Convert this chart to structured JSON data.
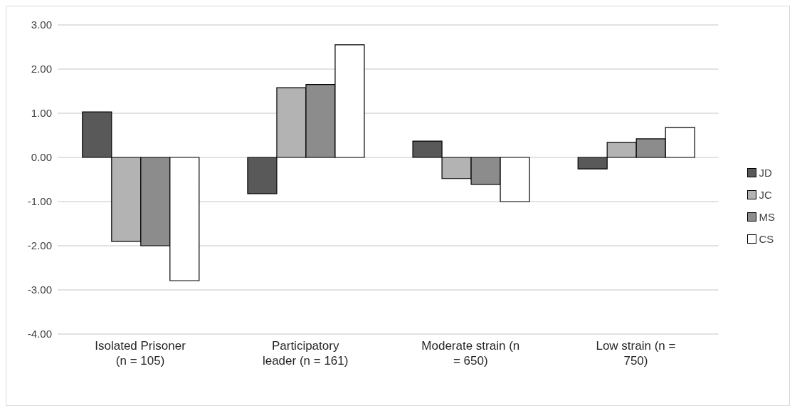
{
  "chart_data": {
    "type": "bar",
    "categories": [
      "Isolated Prisoner (n = 105)",
      "Participatory leader (n = 161)",
      "Moderate strain (n = 650)",
      "Low strain (n = 750)"
    ],
    "series": [
      {
        "name": "JD",
        "color": "#595959",
        "values": [
          1.03,
          -0.82,
          0.37,
          -0.26
        ]
      },
      {
        "name": "JC",
        "color": "#b3b3b3",
        "values": [
          -1.9,
          1.58,
          -0.48,
          0.34
        ]
      },
      {
        "name": "MS",
        "color": "#8c8c8c",
        "values": [
          -2.0,
          1.65,
          -0.61,
          0.42
        ]
      },
      {
        "name": "CS",
        "color": "#ffffff",
        "values": [
          -2.79,
          2.55,
          -1.0,
          0.68
        ]
      }
    ],
    "ylim": [
      -4,
      3
    ],
    "yticks": [
      {
        "value": -4,
        "label": "-4.00"
      },
      {
        "value": -3,
        "label": "-3.00"
      },
      {
        "value": -2,
        "label": "-2.00"
      },
      {
        "value": -1,
        "label": "-1.00"
      },
      {
        "value": 0,
        "label": "0.00"
      },
      {
        "value": 1,
        "label": "1.00"
      },
      {
        "value": 2,
        "label": "2.00"
      },
      {
        "value": 3,
        "label": "3.00"
      }
    ],
    "grid": "y",
    "legend": "right"
  }
}
